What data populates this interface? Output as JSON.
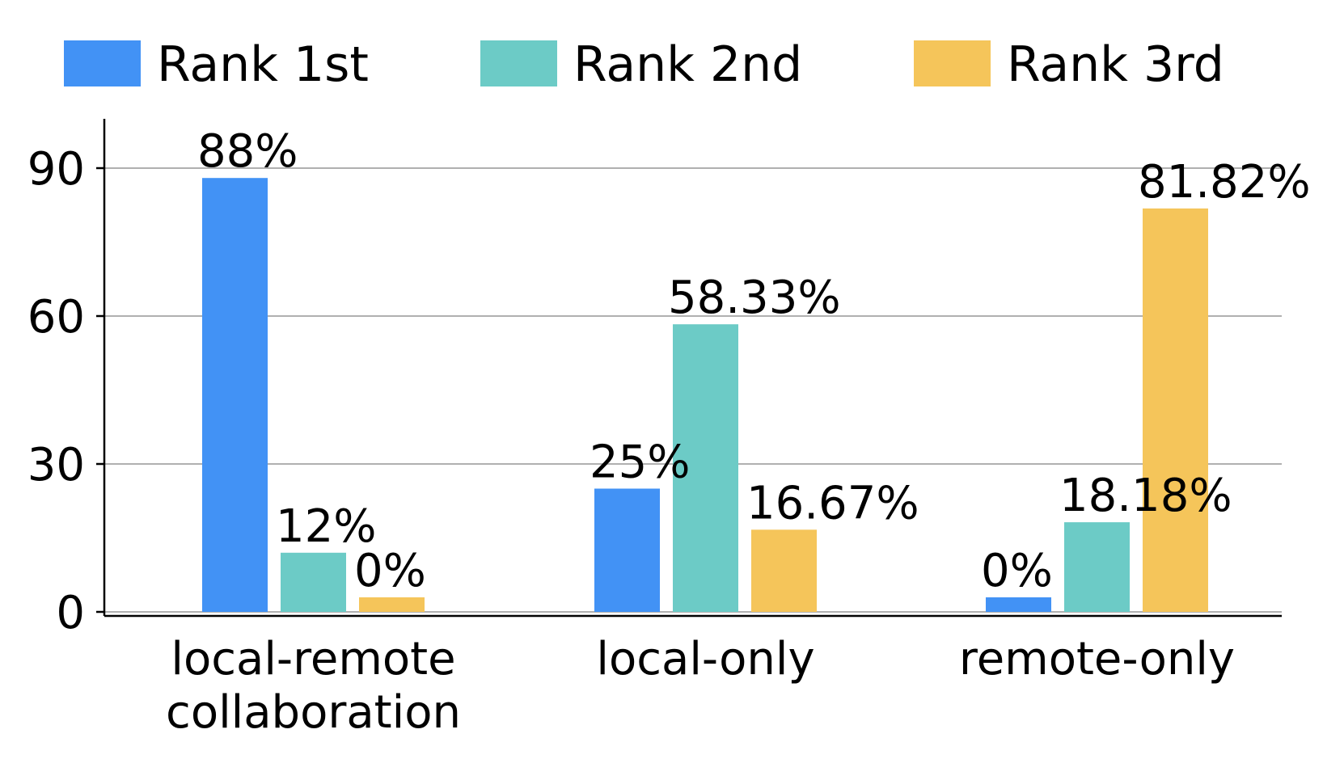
{
  "chart_data": {
    "type": "bar",
    "title": "",
    "xlabel": "",
    "ylabel": "",
    "categories": [
      [
        "local-remote",
        "collaboration"
      ],
      [
        "local-only"
      ],
      [
        "remote-only"
      ]
    ],
    "series": [
      {
        "name": "Rank 1st",
        "color": "#4292f5",
        "values": [
          88,
          25,
          0
        ],
        "labels": [
          "88%",
          "25%",
          "0%"
        ]
      },
      {
        "name": "Rank 2nd",
        "color": "#6ccbc6",
        "values": [
          12,
          58.33,
          18.18
        ],
        "labels": [
          "12%",
          "58.33%",
          "18.18%"
        ]
      },
      {
        "name": "Rank 3rd",
        "color": "#f5c55a",
        "values": [
          0,
          16.67,
          81.82
        ],
        "labels": [
          "0%",
          "16.67%",
          "81.82%"
        ]
      }
    ],
    "yticks": [
      0,
      30,
      60,
      90
    ],
    "ylim": [
      0,
      100
    ],
    "grid": "horizontal",
    "legend": "top"
  }
}
